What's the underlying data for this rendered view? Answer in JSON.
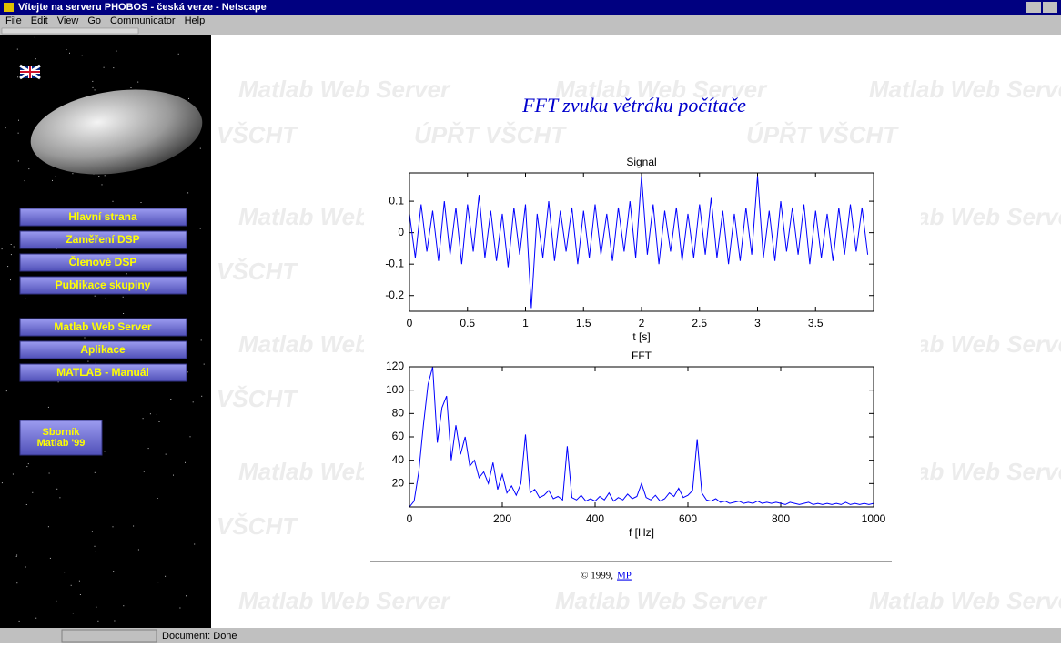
{
  "window": {
    "title": "Vítejte na serveru PHOBOS - česká verze - Netscape"
  },
  "menu": [
    "File",
    "Edit",
    "View",
    "Go",
    "Communicator",
    "Help"
  ],
  "sidebar": {
    "nav": [
      "Hlavní strana",
      "Zaměření DSP",
      "Členové DSP",
      "Publikace skupiny"
    ],
    "tools": [
      "Matlab Web Server",
      "Aplikace",
      "MATLAB - Manuál"
    ],
    "proceedings": [
      "Sborník",
      "Matlab '99"
    ]
  },
  "watermark": [
    "Matlab Web Server",
    "VŠCHT",
    "ÚPŘT  VŠCHT"
  ],
  "heading": "FFT zvuku větráku počítače",
  "chart_data": [
    {
      "type": "line",
      "title": "Signal",
      "xlabel": "t [s]",
      "color": "#0000ff",
      "xlim": [
        0,
        4
      ],
      "xticks": [
        0,
        0.5,
        1,
        1.5,
        2,
        2.5,
        3,
        3.5
      ],
      "ylim": [
        -0.25,
        0.19
      ],
      "yticks": [
        -0.2,
        -0.1,
        0,
        0.1
      ],
      "x": [
        0,
        0.05,
        0.1,
        0.15,
        0.2,
        0.25,
        0.3,
        0.35,
        0.4,
        0.45,
        0.5,
        0.55,
        0.6,
        0.65,
        0.7,
        0.75,
        0.8,
        0.85,
        0.9,
        0.95,
        1,
        1.05,
        1.1,
        1.15,
        1.2,
        1.25,
        1.3,
        1.35,
        1.4,
        1.45,
        1.5,
        1.55,
        1.6,
        1.65,
        1.7,
        1.75,
        1.8,
        1.85,
        1.9,
        1.95,
        2,
        2.05,
        2.1,
        2.15,
        2.2,
        2.25,
        2.3,
        2.35,
        2.4,
        2.45,
        2.5,
        2.55,
        2.6,
        2.65,
        2.7,
        2.75,
        2.8,
        2.85,
        2.9,
        2.95,
        3,
        3.05,
        3.1,
        3.15,
        3.2,
        3.25,
        3.3,
        3.35,
        3.4,
        3.45,
        3.5,
        3.55,
        3.6,
        3.65,
        3.7,
        3.75,
        3.8,
        3.85,
        3.9,
        3.95
      ],
      "values": [
        0.06,
        -0.08,
        0.09,
        -0.06,
        0.07,
        -0.09,
        0.1,
        -0.07,
        0.08,
        -0.1,
        0.09,
        -0.06,
        0.12,
        -0.08,
        0.07,
        -0.09,
        0.06,
        -0.11,
        0.08,
        -0.07,
        0.09,
        -0.24,
        0.06,
        -0.08,
        0.1,
        -0.09,
        0.07,
        -0.06,
        0.08,
        -0.1,
        0.07,
        -0.08,
        0.09,
        -0.07,
        0.06,
        -0.09,
        0.08,
        -0.06,
        0.1,
        -0.08,
        0.18,
        -0.07,
        0.09,
        -0.1,
        0.07,
        -0.06,
        0.08,
        -0.09,
        0.06,
        -0.08,
        0.09,
        -0.07,
        0.11,
        -0.08,
        0.07,
        -0.1,
        0.06,
        -0.09,
        0.08,
        -0.07,
        0.18,
        -0.08,
        0.07,
        -0.09,
        0.1,
        -0.06,
        0.08,
        -0.07,
        0.09,
        -0.1,
        0.07,
        -0.08,
        0.06,
        -0.09,
        0.08,
        -0.07,
        0.09,
        -0.06,
        0.08,
        -0.07
      ]
    },
    {
      "type": "line",
      "title": "FFT",
      "xlabel": "f [Hz]",
      "color": "#0000ff",
      "xlim": [
        0,
        1000
      ],
      "xticks": [
        0,
        200,
        400,
        600,
        800,
        1000
      ],
      "ylim": [
        0,
        120
      ],
      "yticks": [
        20,
        40,
        60,
        80,
        100,
        120
      ],
      "x": [
        0,
        10,
        20,
        30,
        40,
        50,
        60,
        70,
        80,
        90,
        100,
        110,
        120,
        130,
        140,
        150,
        160,
        170,
        180,
        190,
        200,
        210,
        220,
        230,
        240,
        250,
        260,
        270,
        280,
        290,
        300,
        310,
        320,
        330,
        340,
        350,
        360,
        370,
        380,
        390,
        400,
        410,
        420,
        430,
        440,
        450,
        460,
        470,
        480,
        490,
        500,
        510,
        520,
        530,
        540,
        550,
        560,
        570,
        580,
        590,
        600,
        610,
        620,
        630,
        640,
        650,
        660,
        670,
        680,
        690,
        700,
        710,
        720,
        730,
        740,
        750,
        760,
        770,
        780,
        790,
        800,
        810,
        820,
        830,
        840,
        850,
        860,
        870,
        880,
        890,
        900,
        910,
        920,
        930,
        940,
        950,
        960,
        970,
        980,
        990,
        1000
      ],
      "values": [
        0,
        5,
        30,
        70,
        105,
        120,
        55,
        85,
        95,
        40,
        70,
        45,
        60,
        35,
        40,
        25,
        30,
        20,
        38,
        15,
        28,
        12,
        18,
        10,
        20,
        62,
        12,
        15,
        8,
        10,
        14,
        7,
        9,
        6,
        52,
        8,
        6,
        10,
        5,
        7,
        5,
        9,
        6,
        12,
        5,
        8,
        6,
        11,
        7,
        9,
        20,
        8,
        6,
        10,
        5,
        7,
        12,
        9,
        16,
        8,
        10,
        14,
        58,
        12,
        6,
        5,
        7,
        4,
        5,
        3,
        4,
        5,
        3,
        4,
        3,
        5,
        3,
        4,
        3,
        4,
        3,
        2,
        4,
        3,
        2,
        3,
        4,
        2,
        3,
        2,
        3,
        2,
        3,
        2,
        4,
        2,
        3,
        2,
        3,
        2,
        3
      ]
    }
  ],
  "footer": {
    "copyright": "© 1999,",
    "author": "MP"
  },
  "status": "Document: Done"
}
